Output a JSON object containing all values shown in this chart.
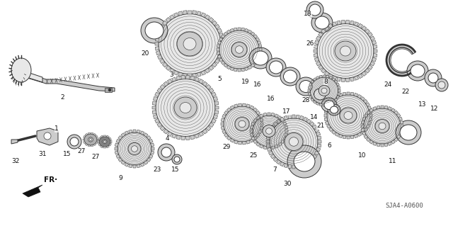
{
  "bg_color": "#ffffff",
  "diagram_code": "SJA4-A0600",
  "fig_width": 6.4,
  "fig_height": 3.19,
  "dpi": 100,
  "label_fontsize": 6.5,
  "label_color": "#111111",
  "diagram_code_fontsize": 6.5,
  "line_color": "#333333",
  "fill_light": "#e8e8e8",
  "fill_mid": "#cccccc",
  "fill_dark": "#aaaaaa",
  "fill_white": "#ffffff",
  "gear_stroke": 0.7,
  "shaft_color": "#bbbbbb"
}
